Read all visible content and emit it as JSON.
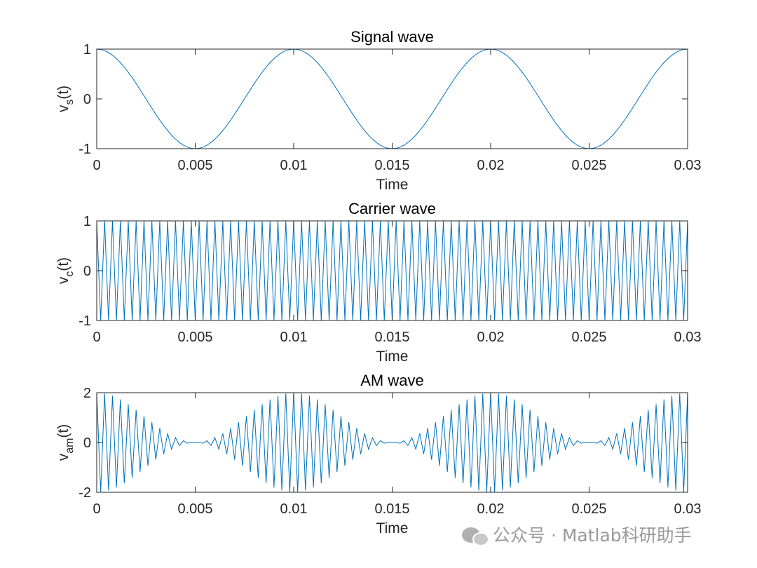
{
  "chart_data": [
    {
      "type": "line",
      "title": "Signal wave",
      "xlabel": "Time",
      "ylabel": {
        "text": "v",
        "subscript": "s",
        "after": "(t)"
      },
      "x": [
        0,
        0.0002,
        0.0004,
        0.0006,
        0.0008,
        0.001,
        0.0012,
        0.0014,
        0.0016,
        0.0018,
        0.002,
        0.0022,
        0.0024,
        0.0026,
        0.0028,
        0.003,
        0.0032,
        0.0034,
        0.0036,
        0.0038,
        0.004,
        0.0042,
        0.0044,
        0.0046,
        0.0048,
        0.005,
        0.0052,
        0.0054,
        0.0056,
        0.0058,
        0.006,
        0.0062,
        0.0064,
        0.0066,
        0.0068,
        0.007,
        0.0072,
        0.0074,
        0.0076,
        0.0078,
        0.008,
        0.0082,
        0.0084,
        0.0086,
        0.0088,
        0.009,
        0.0092,
        0.0094,
        0.0096,
        0.0098,
        0.01,
        0.0102,
        0.0104,
        0.0106,
        0.0108,
        0.011,
        0.0112,
        0.0114,
        0.0116,
        0.0118,
        0.012,
        0.0122,
        0.0124,
        0.0126,
        0.0128,
        0.013,
        0.0132,
        0.0134,
        0.0136,
        0.0138,
        0.014,
        0.0142,
        0.0144,
        0.0146,
        0.0148,
        0.015,
        0.0152,
        0.0154,
        0.0156,
        0.0158,
        0.016,
        0.0162,
        0.0164,
        0.0166,
        0.0168,
        0.017,
        0.0172,
        0.0174,
        0.0176,
        0.0178,
        0.018,
        0.0182,
        0.0184,
        0.0186,
        0.0188,
        0.019,
        0.0192,
        0.0194,
        0.0196,
        0.0198,
        0.02,
        0.0202,
        0.0204,
        0.0206,
        0.0208,
        0.021,
        0.0212,
        0.0214,
        0.0216,
        0.0218,
        0.022,
        0.0222,
        0.0224,
        0.0226,
        0.0228,
        0.023,
        0.0232,
        0.0234,
        0.0236,
        0.0238,
        0.024,
        0.0242,
        0.0244,
        0.0246,
        0.0248,
        0.025,
        0.0252,
        0.0254,
        0.0256,
        0.0258,
        0.026,
        0.0262,
        0.0264,
        0.0266,
        0.0268,
        0.027,
        0.0272,
        0.0274,
        0.0276,
        0.0278,
        0.028,
        0.0282,
        0.0284,
        0.0286,
        0.0288,
        0.029,
        0.0292,
        0.0294,
        0.0296,
        0.0298,
        0.03
      ],
      "series": [
        {
          "color": "#0072bd",
          "values": [
            1,
            0.992,
            0.969,
            0.93,
            0.876,
            0.809,
            0.729,
            0.637,
            0.536,
            0.426,
            0.309,
            0.187,
            0.063,
            -0.063,
            -0.187,
            -0.309,
            -0.426,
            -0.536,
            -0.637,
            -0.729,
            -0.809,
            -0.876,
            -0.93,
            -0.969,
            -0.992,
            -1,
            -0.992,
            -0.969,
            -0.93,
            -0.876,
            -0.809,
            -0.729,
            -0.637,
            -0.536,
            -0.426,
            -0.309,
            -0.187,
            -0.063,
            0.063,
            0.187,
            0.309,
            0.426,
            0.536,
            0.637,
            0.729,
            0.809,
            0.876,
            0.93,
            0.969,
            0.992,
            1,
            0.992,
            0.969,
            0.93,
            0.876,
            0.809,
            0.729,
            0.637,
            0.536,
            0.426,
            0.309,
            0.187,
            0.063,
            -0.063,
            -0.187,
            -0.309,
            -0.426,
            -0.536,
            -0.637,
            -0.729,
            -0.809,
            -0.876,
            -0.93,
            -0.969,
            -0.992,
            -1,
            -0.992,
            -0.969,
            -0.93,
            -0.876,
            -0.809,
            -0.729,
            -0.637,
            -0.536,
            -0.426,
            -0.309,
            -0.187,
            -0.063,
            0.063,
            0.187,
            0.309,
            0.426,
            0.536,
            0.637,
            0.729,
            0.809,
            0.876,
            0.93,
            0.969,
            0.992,
            1,
            0.992,
            0.969,
            0.93,
            0.876,
            0.809,
            0.729,
            0.637,
            0.536,
            0.426,
            0.309,
            0.187,
            0.063,
            -0.063,
            -0.187,
            -0.309,
            -0.426,
            -0.536,
            -0.637,
            -0.729,
            -0.809,
            -0.876,
            -0.93,
            -0.969,
            -0.992,
            -1,
            -0.992,
            -0.969,
            -0.93,
            -0.876,
            -0.809,
            -0.729,
            -0.637,
            -0.536,
            -0.426,
            -0.309,
            -0.187,
            -0.063,
            0.063,
            0.187,
            0.309,
            0.426,
            0.536,
            0.637,
            0.729,
            0.809,
            0.876,
            0.93,
            0.969,
            0.992,
            1
          ]
        }
      ],
      "xlim": [
        0,
        0.03
      ],
      "xticks": [
        0,
        0.005,
        0.01,
        0.015,
        0.02,
        0.025,
        0.03
      ],
      "ylim": [
        -1,
        1
      ],
      "yticks": [
        -1,
        0,
        1
      ]
    },
    {
      "type": "line",
      "title": "Carrier wave",
      "xlabel": "Time",
      "ylabel": {
        "text": "v",
        "subscript": "c",
        "after": "(t)"
      },
      "x": [
        0,
        0.0002,
        0.0004,
        0.0006,
        0.0008,
        0.001,
        0.0012,
        0.0014,
        0.0016,
        0.0018,
        0.002,
        0.0022,
        0.0024,
        0.0026,
        0.0028,
        0.003,
        0.0032,
        0.0034,
        0.0036,
        0.0038,
        0.004,
        0.0042,
        0.0044,
        0.0046,
        0.0048,
        0.005,
        0.0052,
        0.0054,
        0.0056,
        0.0058,
        0.006,
        0.0062,
        0.0064,
        0.0066,
        0.0068,
        0.007,
        0.0072,
        0.0074,
        0.0076,
        0.0078,
        0.008,
        0.0082,
        0.0084,
        0.0086,
        0.0088,
        0.009,
        0.0092,
        0.0094,
        0.0096,
        0.0098,
        0.01,
        0.0102,
        0.0104,
        0.0106,
        0.0108,
        0.011,
        0.0112,
        0.0114,
        0.0116,
        0.0118,
        0.012,
        0.0122,
        0.0124,
        0.0126,
        0.0128,
        0.013,
        0.0132,
        0.0134,
        0.0136,
        0.0138,
        0.014,
        0.0142,
        0.0144,
        0.0146,
        0.0148,
        0.015,
        0.0152,
        0.0154,
        0.0156,
        0.0158,
        0.016,
        0.0162,
        0.0164,
        0.0166,
        0.0168,
        0.017,
        0.0172,
        0.0174,
        0.0176,
        0.0178,
        0.018,
        0.0182,
        0.0184,
        0.0186,
        0.0188,
        0.019,
        0.0192,
        0.0194,
        0.0196,
        0.0198,
        0.02,
        0.0202,
        0.0204,
        0.0206,
        0.0208,
        0.021,
        0.0212,
        0.0214,
        0.0216,
        0.0218,
        0.022,
        0.0222,
        0.0224,
        0.0226,
        0.0228,
        0.023,
        0.0232,
        0.0234,
        0.0236,
        0.0238,
        0.024,
        0.0242,
        0.0244,
        0.0246,
        0.0248,
        0.025,
        0.0252,
        0.0254,
        0.0256,
        0.0258,
        0.026,
        0.0262,
        0.0264,
        0.0266,
        0.0268,
        0.027,
        0.0272,
        0.0274,
        0.0276,
        0.0278,
        0.028,
        0.0282,
        0.0284,
        0.0286,
        0.0288,
        0.029,
        0.0292,
        0.0294,
        0.0296,
        0.0298,
        0.03
      ],
      "series": [
        {
          "color": "#0072bd",
          "values": [
            1,
            -1,
            1,
            -1,
            1,
            -1,
            1,
            -1,
            1,
            -1,
            1,
            -1,
            1,
            -1,
            1,
            -1,
            1,
            -1,
            1,
            -1,
            1,
            -1,
            1,
            -1,
            1,
            -1,
            1,
            -1,
            1,
            -1,
            1,
            -1,
            1,
            -1,
            1,
            -1,
            1,
            -1,
            1,
            -1,
            1,
            -1,
            1,
            -1,
            1,
            -1,
            1,
            -1,
            1,
            -1,
            1,
            -1,
            1,
            -1,
            1,
            -1,
            1,
            -1,
            1,
            -1,
            1,
            -1,
            1,
            -1,
            1,
            -1,
            1,
            -1,
            1,
            -1,
            1,
            -1,
            1,
            -1,
            1,
            -1,
            1,
            -1,
            1,
            -1,
            1,
            -1,
            1,
            -1,
            1,
            -1,
            1,
            -1,
            1,
            -1,
            1,
            -1,
            1,
            -1,
            1,
            -1,
            1,
            -1,
            1,
            -1,
            1,
            -1,
            1,
            -1,
            1,
            -1,
            1,
            -1,
            1,
            -1,
            1,
            -1,
            1,
            -1,
            1,
            -1,
            1,
            -1,
            1,
            -1,
            1,
            -1,
            1,
            -1,
            1,
            -1,
            1,
            -1,
            1,
            -1,
            1,
            -1,
            1,
            -1,
            1,
            -1,
            1,
            -1,
            1,
            -1,
            1,
            -1,
            1,
            -1,
            1,
            -1,
            1,
            -1,
            1,
            -1,
            1
          ]
        }
      ],
      "xlim": [
        0,
        0.03
      ],
      "xticks": [
        0,
        0.005,
        0.01,
        0.015,
        0.02,
        0.025,
        0.03
      ],
      "ylim": [
        -1,
        1
      ],
      "yticks": [
        -1,
        0,
        1
      ]
    },
    {
      "type": "line",
      "title": "AM wave",
      "xlabel": "Time",
      "ylabel": {
        "text": "v",
        "subscript": "am",
        "after": "(t)"
      },
      "x": [
        0,
        0.0002,
        0.0004,
        0.0006,
        0.0008,
        0.001,
        0.0012,
        0.0014,
        0.0016,
        0.0018,
        0.002,
        0.0022,
        0.0024,
        0.0026,
        0.0028,
        0.003,
        0.0032,
        0.0034,
        0.0036,
        0.0038,
        0.004,
        0.0042,
        0.0044,
        0.0046,
        0.0048,
        0.005,
        0.0052,
        0.0054,
        0.0056,
        0.0058,
        0.006,
        0.0062,
        0.0064,
        0.0066,
        0.0068,
        0.007,
        0.0072,
        0.0074,
        0.0076,
        0.0078,
        0.008,
        0.0082,
        0.0084,
        0.0086,
        0.0088,
        0.009,
        0.0092,
        0.0094,
        0.0096,
        0.0098,
        0.01,
        0.0102,
        0.0104,
        0.0106,
        0.0108,
        0.011,
        0.0112,
        0.0114,
        0.0116,
        0.0118,
        0.012,
        0.0122,
        0.0124,
        0.0126,
        0.0128,
        0.013,
        0.0132,
        0.0134,
        0.0136,
        0.0138,
        0.014,
        0.0142,
        0.0144,
        0.0146,
        0.0148,
        0.015,
        0.0152,
        0.0154,
        0.0156,
        0.0158,
        0.016,
        0.0162,
        0.0164,
        0.0166,
        0.0168,
        0.017,
        0.0172,
        0.0174,
        0.0176,
        0.0178,
        0.018,
        0.0182,
        0.0184,
        0.0186,
        0.0188,
        0.019,
        0.0192,
        0.0194,
        0.0196,
        0.0198,
        0.02,
        0.0202,
        0.0204,
        0.0206,
        0.0208,
        0.021,
        0.0212,
        0.0214,
        0.0216,
        0.0218,
        0.022,
        0.0222,
        0.0224,
        0.0226,
        0.0228,
        0.023,
        0.0232,
        0.0234,
        0.0236,
        0.0238,
        0.024,
        0.0242,
        0.0244,
        0.0246,
        0.0248,
        0.025,
        0.0252,
        0.0254,
        0.0256,
        0.0258,
        0.026,
        0.0262,
        0.0264,
        0.0266,
        0.0268,
        0.027,
        0.0272,
        0.0274,
        0.0276,
        0.0278,
        0.028,
        0.0282,
        0.0284,
        0.0286,
        0.0288,
        0.029,
        0.0292,
        0.0294,
        0.0296,
        0.0298,
        0.03
      ],
      "series": [
        {
          "color": "#0072bd",
          "values": [
            2,
            -1.992,
            1.969,
            -1.93,
            1.876,
            -1.809,
            1.729,
            -1.637,
            1.536,
            -1.426,
            1.309,
            -1.187,
            1.063,
            -0.937,
            0.813,
            -0.691,
            0.574,
            -0.464,
            0.363,
            -0.271,
            0.191,
            -0.124,
            0.07,
            -0.031,
            0.008,
            0,
            0.008,
            -0.031,
            0.07,
            -0.124,
            0.191,
            -0.271,
            0.363,
            -0.464,
            0.574,
            -0.691,
            0.813,
            -0.937,
            1.063,
            -1.187,
            1.309,
            -1.426,
            1.536,
            -1.637,
            1.729,
            -1.809,
            1.876,
            -1.93,
            1.969,
            -1.992,
            2,
            -1.992,
            1.969,
            -1.93,
            1.876,
            -1.809,
            1.729,
            -1.637,
            1.536,
            -1.426,
            1.309,
            -1.187,
            1.063,
            -0.937,
            0.813,
            -0.691,
            0.574,
            -0.464,
            0.363,
            -0.271,
            0.191,
            -0.124,
            0.07,
            -0.031,
            0.008,
            0,
            0.008,
            -0.031,
            0.07,
            -0.124,
            0.191,
            -0.271,
            0.363,
            -0.464,
            0.574,
            -0.691,
            0.813,
            -0.937,
            1.063,
            -1.187,
            1.309,
            -1.426,
            1.536,
            -1.637,
            1.729,
            -1.809,
            1.876,
            -1.93,
            1.969,
            -1.992,
            2,
            -1.992,
            1.969,
            -1.93,
            1.876,
            -1.809,
            1.729,
            -1.637,
            1.536,
            -1.426,
            1.309,
            -1.187,
            1.063,
            -0.937,
            0.813,
            -0.691,
            0.574,
            -0.464,
            0.363,
            -0.271,
            0.191,
            -0.124,
            0.07,
            -0.031,
            0.008,
            0,
            0.008,
            -0.031,
            0.07,
            -0.124,
            0.191,
            -0.271,
            0.363,
            -0.464,
            0.574,
            -0.691,
            0.813,
            -0.937,
            1.063,
            -1.187,
            1.309,
            -1.426,
            1.536,
            -1.637,
            1.729,
            -1.809,
            1.876,
            -1.93,
            1.969,
            -1.992,
            2
          ]
        }
      ],
      "xlim": [
        0,
        0.03
      ],
      "xticks": [
        0,
        0.005,
        0.01,
        0.015,
        0.02,
        0.025,
        0.03
      ],
      "ylim": [
        -2,
        2
      ],
      "yticks": [
        -2,
        0,
        2
      ]
    }
  ],
  "watermark": "公众号 · Matlab科研助手"
}
